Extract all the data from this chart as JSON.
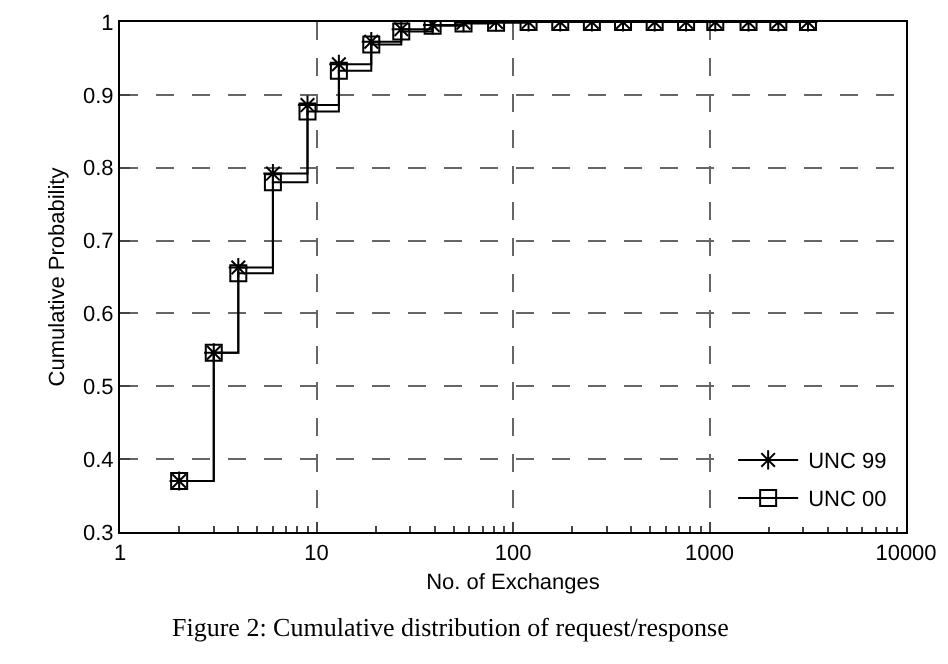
{
  "chart_data": {
    "type": "step",
    "xlabel": "No. of Exchanges",
    "ylabel": "Cumulative Probability",
    "x": [
      2,
      3,
      4,
      6,
      9,
      13,
      19,
      27,
      39,
      56,
      82,
      120,
      174,
      252,
      363,
      526,
      760,
      1070,
      1580,
      2240,
      3170
    ],
    "series": [
      {
        "name": "UNC 99",
        "color": "#000000",
        "marker": "cross",
        "values": [
          0.37,
          0.546,
          0.663,
          0.792,
          0.886,
          0.942,
          0.973,
          0.99,
          0.996,
          0.999,
          1.0,
          1.0,
          1.0,
          1.0,
          1.0,
          1.0,
          1.0,
          1.0,
          1.0,
          1.0,
          1.0
        ]
      },
      {
        "name": "UNC 00",
        "color": "#000000",
        "marker": "square",
        "values": [
          0.37,
          0.546,
          0.655,
          0.78,
          0.877,
          0.933,
          0.969,
          0.987,
          0.995,
          0.998,
          0.999,
          1.0,
          1.0,
          1.0,
          1.0,
          1.0,
          1.0,
          1.0,
          1.0,
          1.0,
          1.0
        ]
      }
    ],
    "log": "x",
    "xlim": [
      1,
      10000
    ],
    "xticks": [
      1,
      10,
      100,
      1000,
      10000
    ],
    "ylim": [
      0.3,
      1
    ],
    "yticks": [
      0.3,
      0.4,
      0.5,
      0.6,
      0.7,
      0.8,
      0.9,
      1
    ],
    "grid": true,
    "legend": "bottom right",
    "line_style": "solid",
    "annotations": [
      "Figure 2: Cumulative distribution of request/response"
    ]
  }
}
